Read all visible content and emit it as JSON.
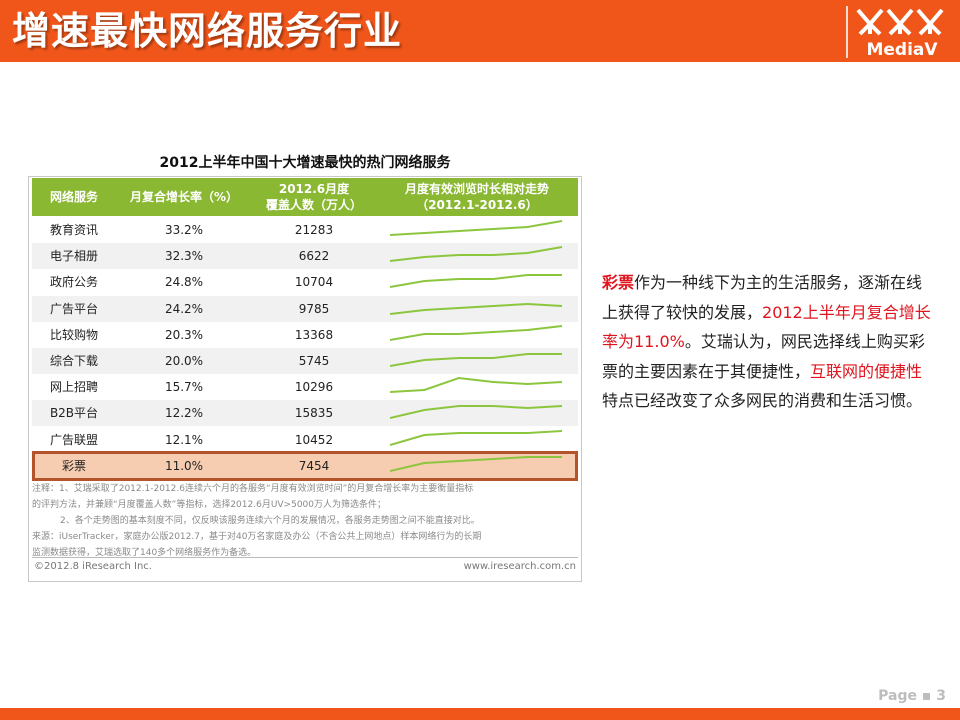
{
  "slide": {
    "title": "增速最快网络服务行业",
    "logo_text": "MediaV",
    "page_label": "Page ▪ 3"
  },
  "table": {
    "title": "2012上半年中国十大增速最快的热门网络服务",
    "headers": {
      "service": "网络服务",
      "rate": "月复合增长率（%）",
      "users_line1": "2012.6月度",
      "users_line2": "覆盖人数（万人）",
      "trend_line1": "月度有效浏览时长相对走势",
      "trend_line2": "（2012.1-2012.6）"
    },
    "rows": [
      {
        "service": "教育资讯",
        "rate": "33.2%",
        "users": "21283",
        "trend": [
          2,
          3,
          4,
          5,
          6,
          9
        ]
      },
      {
        "service": "电子相册",
        "rate": "32.3%",
        "users": "6622",
        "trend": [
          2,
          4,
          5,
          5,
          6,
          9
        ]
      },
      {
        "service": "政府公务",
        "rate": "24.8%",
        "users": "10704",
        "trend": [
          2,
          5,
          6,
          6,
          8,
          8
        ]
      },
      {
        "service": "广告平台",
        "rate": "24.2%",
        "users": "9785",
        "trend": [
          2,
          4,
          5,
          6,
          7,
          6
        ]
      },
      {
        "service": "比较购物",
        "rate": "20.3%",
        "users": "13368",
        "trend": [
          2,
          5,
          5,
          6,
          7,
          9
        ]
      },
      {
        "service": "综合下载",
        "rate": "20.0%",
        "users": "5745",
        "trend": [
          2,
          5,
          6,
          6,
          8,
          8
        ]
      },
      {
        "service": "网上招聘",
        "rate": "15.7%",
        "users": "10296",
        "trend": [
          2,
          3,
          9,
          7,
          6,
          7
        ]
      },
      {
        "service": "B2B平台",
        "rate": "12.2%",
        "users": "15835",
        "trend": [
          2,
          6,
          8,
          8,
          7,
          8
        ]
      },
      {
        "service": "广告联盟",
        "rate": "12.1%",
        "users": "10452",
        "trend": [
          2,
          7,
          8,
          8,
          8,
          9
        ]
      },
      {
        "service": "彩票",
        "rate": "11.0%",
        "users": "7454",
        "trend": [
          2,
          6,
          7,
          8,
          9,
          9
        ]
      }
    ],
    "notes": [
      "注释：1、艾瑞采取了2012.1-2012.6连续六个月的各服务“月度有效浏览时间”的月复合增长率为主要衡量指标",
      "的评判方法，并兼顾“月度覆盖人数”等指标，选择2012.6月UV>5000万人为筛选条件；",
      "2、各个走势图的基本刻度不同，仅反映该服务连续六个月的发展情况，各服务走势图之间不能直接对比。",
      "来源：iUserTracker，家庭办公版2012.7，基于对40万名家庭及办公（不含公共上网地点）样本网络行为的长期",
      "监测数据获得，艾瑞选取了140多个网络服务作为备选。"
    ],
    "footer_left": "©2012.8 iResearch Inc.",
    "footer_right": "www.iresearch.com.cn"
  },
  "side_text": {
    "p1_red": "彩票",
    "p1": "作为一种线下为主的生活服务，逐渐在线上获得了较快的发展，",
    "p2_red": "2012上半年月复合增长率为11.0%",
    "p3": "。艾瑞认为，网民选择线上购买彩票的主要因素在于其便捷性，",
    "p4_red": "互联网的便捷性",
    "p5": "特点已经改变了众多网民的消费和生活习惯。"
  },
  "colors": {
    "brand_orange": "#f0561a",
    "header_green": "#8ab832",
    "spark_green": "#8cc63e",
    "highlight_fill": "#f6cdb1",
    "highlight_border": "#b3542a",
    "accent_red": "#e0141e"
  }
}
